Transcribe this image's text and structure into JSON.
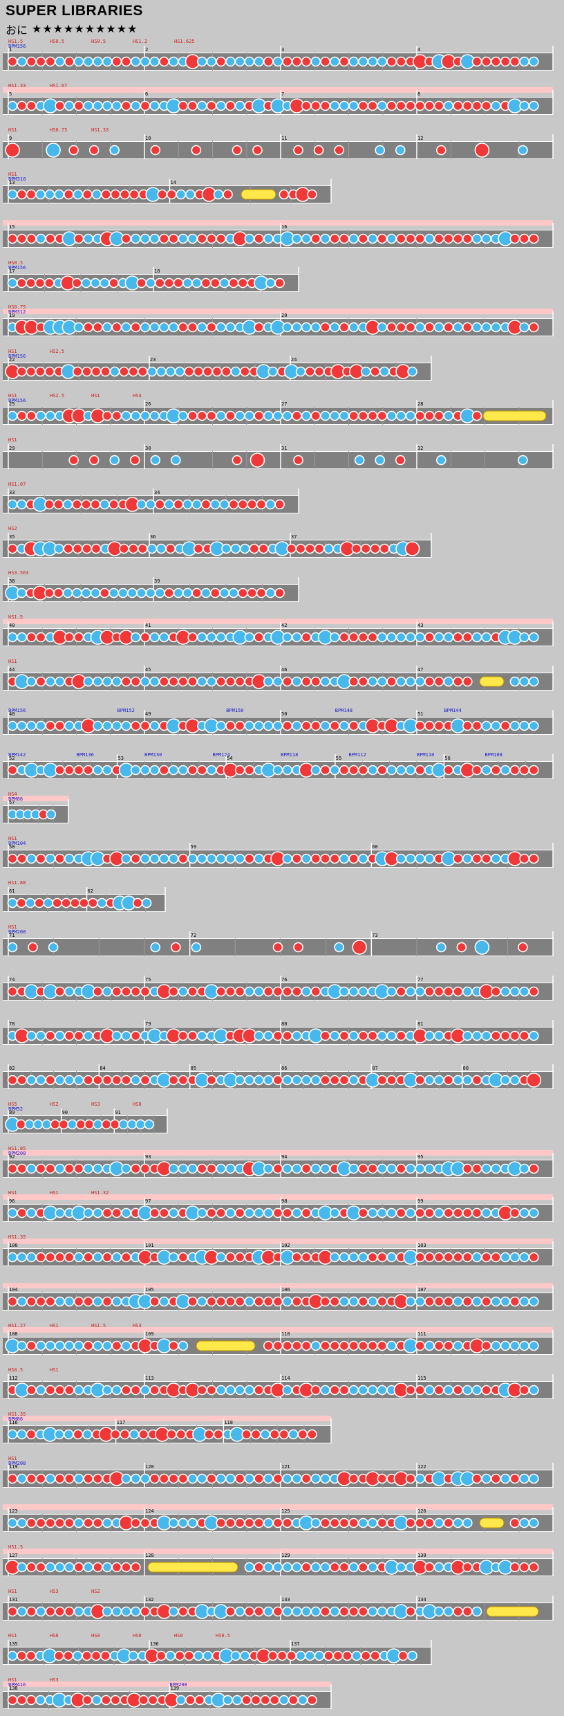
{
  "song": {
    "title": "SUPER LIBRARIES",
    "difficulty_label": "おに",
    "stars": "★★★★★★★★★★"
  },
  "chart_data": {
    "type": "taiko-fumen",
    "rows": [
      {
        "bars": [
          "1",
          "2",
          "3",
          "4"
        ],
        "hs": [
          "HS1.5",
          "HS0.5",
          "HS0.5",
          "HS1.2",
          "HS1.625"
        ],
        "bpm": "BPM156",
        "gogo": false,
        "w": 796,
        "seed": 3,
        "roll": null
      },
      {
        "bars": [
          "5",
          "6",
          "7",
          "8"
        ],
        "hs": [
          "HS1.33",
          "HS1.07"
        ],
        "bpm": "",
        "gogo": true,
        "w": 796,
        "seed": 5,
        "roll": null
      },
      {
        "bars": [
          "9",
          "10",
          "11",
          "12"
        ],
        "hs": [
          "HS1",
          "HS0.75",
          "HS1.33"
        ],
        "bpm": "",
        "gogo": false,
        "w": 796,
        "seed": 7,
        "sparse": true,
        "roll": null
      },
      {
        "bars": [
          "13",
          "14"
        ],
        "hs": [
          "HS1"
        ],
        "bpm": "BPM310",
        "gogo": false,
        "w": 475,
        "seed": 9,
        "roll": [
          345,
          395
        ]
      },
      {
        "bars": [
          "15",
          "16"
        ],
        "hs": [],
        "bpm": "",
        "gogo": true,
        "w": 796,
        "seed": 11,
        "roll": null
      },
      {
        "bars": [
          "17",
          "18"
        ],
        "hs": [
          "HS0.5"
        ],
        "bpm": "BPM156",
        "gogo": false,
        "w": 428,
        "seed": 13,
        "roll": null
      },
      {
        "bars": [
          "19",
          "20"
        ],
        "hs": [
          "HS0.75"
        ],
        "bpm": "BPM312",
        "gogo": true,
        "w": 796,
        "seed": 15,
        "roll": null
      },
      {
        "bars": [
          "22",
          "23",
          "24"
        ],
        "hs": [
          "HS1",
          "HS2.5"
        ],
        "bpm": "BPM156",
        "gogo": false,
        "w": 620,
        "seed": 17,
        "roll": null
      },
      {
        "bars": [
          "25",
          "26",
          "27",
          "28"
        ],
        "hs": [
          "HS1",
          "HS2.5",
          "HS1",
          "HS4"
        ],
        "bpm": "BPM156",
        "gogo": false,
        "w": 796,
        "seed": 19,
        "roll": [
          695,
          795
        ]
      },
      {
        "bars": [
          "29",
          "30",
          "31",
          "32"
        ],
        "hs": [
          "HS1"
        ],
        "bpm": "",
        "gogo": false,
        "w": 796,
        "seed": 21,
        "sparse": true,
        "roll": null
      },
      {
        "bars": [
          "33",
          "34"
        ],
        "hs": [
          "HS1.07"
        ],
        "bpm": "",
        "gogo": false,
        "w": 428,
        "seed": 23,
        "roll": null
      },
      {
        "bars": [
          "35",
          "36",
          "37"
        ],
        "hs": [
          "HS2"
        ],
        "bpm": "",
        "gogo": false,
        "w": 620,
        "seed": 25,
        "roll": null
      },
      {
        "bars": [
          "38",
          "39"
        ],
        "hs": [
          "HS3.563"
        ],
        "bpm": "",
        "gogo": false,
        "w": 428,
        "seed": 27,
        "roll": null
      },
      {
        "bars": [
          "40",
          "41",
          "42",
          "43"
        ],
        "hs": [
          "HS1.5"
        ],
        "bpm": "",
        "gogo": true,
        "w": 796,
        "seed": 29,
        "roll": null
      },
      {
        "bars": [
          "44",
          "45",
          "46",
          "47"
        ],
        "hs": [
          "HS1"
        ],
        "bpm": "",
        "gogo": false,
        "w": 796,
        "seed": 31,
        "roll": [
          690,
          725
        ]
      },
      {
        "bars": [
          "48",
          "49",
          "50",
          "51"
        ],
        "hs": [],
        "bpm": "BPM156",
        "bpms": [
          "BPM152",
          "BPM150",
          "BPM148",
          "BPM144"
        ],
        "gogo": false,
        "w": 796,
        "seed": 33,
        "roll": null
      },
      {
        "bars": [
          "52",
          "53",
          "54",
          "55",
          "56"
        ],
        "hs": [],
        "bpm": "BPM142",
        "bpms": [
          "BPM136",
          "BPM130",
          "BPM124",
          "BPM118",
          "BPM112",
          "BPM110",
          "BPM108"
        ],
        "gogo": false,
        "w": 796,
        "seed": 35,
        "roll": null
      },
      {
        "bars": [
          "57"
        ],
        "hs": [
          "HS4"
        ],
        "bpm": "BPM86",
        "gogo": true,
        "w": 95,
        "seed": 37,
        "roll": null
      },
      {
        "bars": [
          "58",
          "59",
          "60"
        ],
        "hs": [
          "HS1"
        ],
        "bpm": "BPM104",
        "gogo": false,
        "w": 796,
        "seed": 39,
        "roll": null
      },
      {
        "bars": [
          "61",
          "62"
        ],
        "hs": [
          "HS1.88"
        ],
        "bpm": "",
        "gogo": false,
        "w": 235,
        "seed": 41,
        "roll": null
      },
      {
        "bars": [
          "71",
          "72",
          "73"
        ],
        "hs": [
          "HS1"
        ],
        "bpm": "BPM208",
        "gogo": false,
        "w": 796,
        "seed": 43,
        "sparse": true,
        "roll": null
      },
      {
        "bars": [
          "74",
          "75",
          "76",
          "77"
        ],
        "hs": [],
        "bpm": "",
        "gogo": false,
        "w": 796,
        "seed": 45,
        "roll": null
      },
      {
        "bars": [
          "78",
          "79",
          "80",
          "81"
        ],
        "hs": [],
        "bpm": "",
        "gogo": false,
        "w": 796,
        "seed": 47,
        "roll": null
      },
      {
        "bars": [
          "82",
          "84",
          "85",
          "86",
          "87",
          "88"
        ],
        "hs": [],
        "bpm": "",
        "gogo": false,
        "w": 796,
        "seed": 49,
        "roll": null
      },
      {
        "bars": [
          "89",
          "90",
          "91"
        ],
        "hs": [
          "HS5",
          "HS2",
          "HS3",
          "HS8"
        ],
        "bpm": "BPM52",
        "gogo": false,
        "w": 238,
        "seed": 51,
        "roll": null
      },
      {
        "bars": [
          "92",
          "93",
          "94",
          "95"
        ],
        "hs": [
          "HS1.85"
        ],
        "bpm": "BPM208",
        "gogo": true,
        "w": 796,
        "seed": 53,
        "roll": null
      },
      {
        "bars": [
          "96",
          "97",
          "98",
          "99"
        ],
        "hs": [
          "HS1",
          "HS1",
          "HS1.32"
        ],
        "bpm": "",
        "gogo": true,
        "w": 796,
        "seed": 55,
        "roll": null
      },
      {
        "bars": [
          "100",
          "101",
          "102",
          "103"
        ],
        "hs": [
          "HS1.35"
        ],
        "bpm": "",
        "gogo": true,
        "w": 796,
        "seed": 57,
        "roll": null
      },
      {
        "bars": [
          "104",
          "105",
          "106",
          "107"
        ],
        "hs": [],
        "bpm": "",
        "gogo": true,
        "w": 796,
        "seed": 59,
        "roll": null
      },
      {
        "bars": [
          "108",
          "109",
          "110",
          "111"
        ],
        "hs": [
          "HS1.27",
          "HS1",
          "HS1.5",
          "HS3"
        ],
        "bpm": "",
        "gogo": true,
        "w": 796,
        "seed": 61,
        "roll": [
          280,
          365
        ]
      },
      {
        "bars": [
          "112",
          "113",
          "114",
          "115"
        ],
        "hs": [
          "HS0.5",
          "HS1"
        ],
        "bpm": "",
        "gogo": false,
        "w": 796,
        "seed": 63,
        "roll": null
      },
      {
        "bars": [
          "116",
          "117",
          "118"
        ],
        "hs": [
          "HS1.35"
        ],
        "bpm": "BPM86",
        "gogo": true,
        "w": 475,
        "seed": 65,
        "roll": null
      },
      {
        "bars": [
          "119",
          "120",
          "121",
          "122"
        ],
        "hs": [
          "HS1"
        ],
        "bpm": "BPM208",
        "gogo": false,
        "w": 796,
        "seed": 67,
        "roll": null
      },
      {
        "bars": [
          "123",
          "124",
          "125",
          "126"
        ],
        "hs": [],
        "bpm": "",
        "gogo": true,
        "w": 796,
        "seed": 69,
        "roll": [
          690,
          725
        ]
      },
      {
        "bars": [
          "127",
          "128",
          "129",
          "130"
        ],
        "hs": [
          "HS1.5"
        ],
        "bpm": "",
        "gogo": true,
        "w": 796,
        "seed": 71,
        "roll": [
          210,
          340
        ]
      },
      {
        "bars": [
          "131",
          "132",
          "133",
          "134"
        ],
        "hs": [
          "HS1",
          "HS3",
          "HS2"
        ],
        "bpm": "",
        "gogo": false,
        "w": 796,
        "seed": 73,
        "roll": [
          700,
          775
        ]
      },
      {
        "bars": [
          "135",
          "136",
          "137"
        ],
        "hs": [
          "HS1",
          "HS0",
          "HS0",
          "HS0",
          "HS0",
          "HS0.5"
        ],
        "bpm": "",
        "gogo": false,
        "w": 620,
        "seed": 75,
        "roll": null
      },
      {
        "bars": [
          "138",
          "139"
        ],
        "hs": [
          "HS1",
          "HS3"
        ],
        "bpm": "BPM416",
        "bpms": [
          "BPM208"
        ],
        "gogo": true,
        "w": 475,
        "seed": 77,
        "roll": null
      }
    ]
  },
  "colors": {
    "don": "#f03838",
    "ka": "#46b8ec",
    "lane": "#808080",
    "gogo": "#ffc8c8",
    "hs": "#d02020",
    "bpm": "#2020d0",
    "roll": "#ffe84a",
    "balloon": "#ffb040"
  }
}
